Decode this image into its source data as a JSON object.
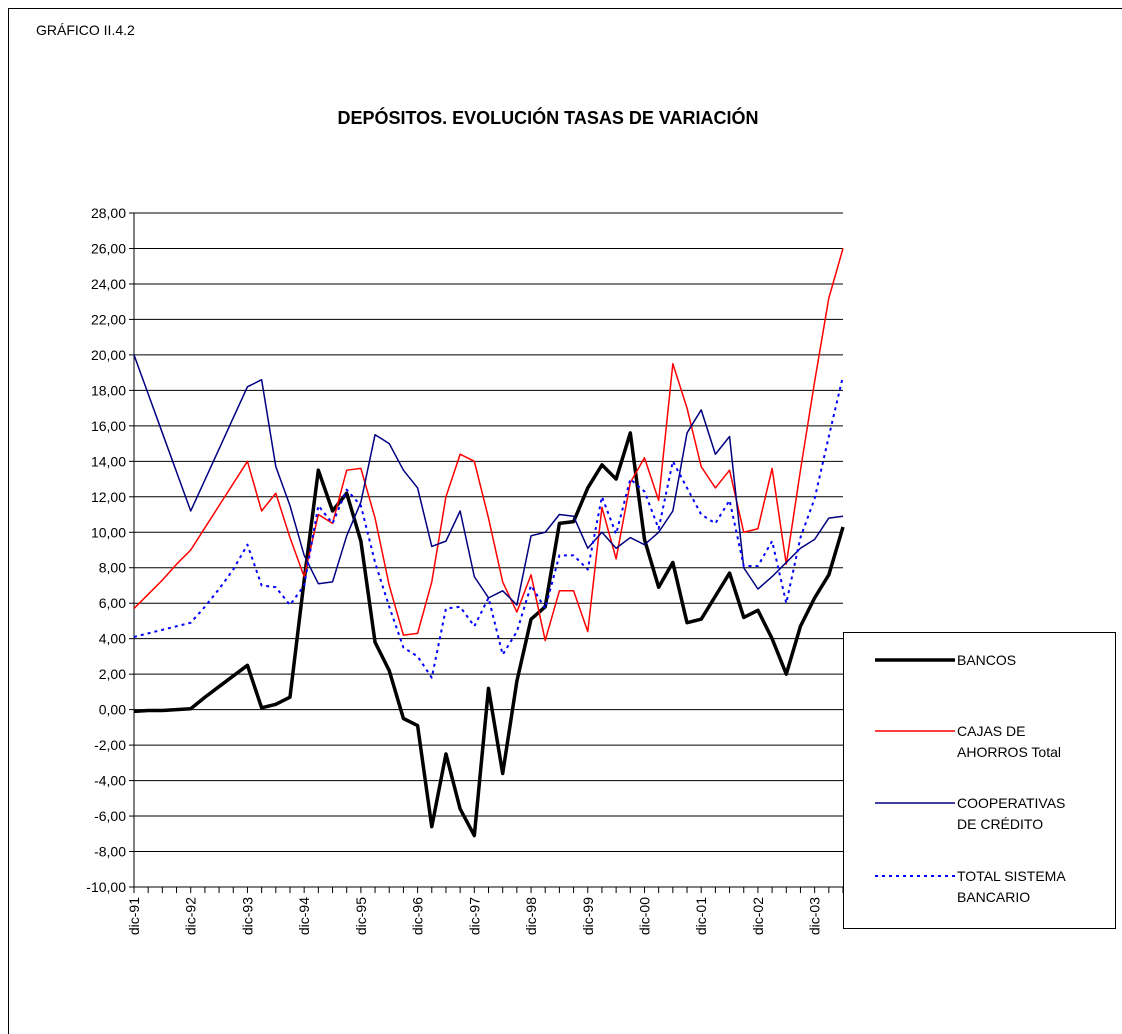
{
  "header": {
    "label": "GRÁFICO II.4.2"
  },
  "chart_data": {
    "type": "line",
    "title": "DEPÓSITOS. EVOLUCIÓN TASAS DE VARIACIÓN",
    "categories": [
      "dic-91",
      null,
      null,
      null,
      "dic-92",
      null,
      null,
      null,
      "dic-93",
      null,
      null,
      null,
      "dic-94",
      null,
      null,
      null,
      "dic-95",
      null,
      null,
      null,
      "dic-96",
      null,
      null,
      null,
      "dic-97",
      null,
      null,
      null,
      "dic-98",
      null,
      null,
      null,
      "dic-99",
      null,
      null,
      null,
      "dic-00",
      null,
      null,
      null,
      "dic-01",
      null,
      null,
      null,
      "dic-02",
      null,
      null,
      null,
      "dic-03",
      null,
      null
    ],
    "series": [
      {
        "name": "BANCOS",
        "color": "#000000",
        "line_width": 3.5,
        "line_style": "solid",
        "values": [
          -0.1,
          -0.05,
          -0.05,
          0,
          0.05,
          0.7,
          1.3,
          1.9,
          2.5,
          0.1,
          0.3,
          0.7,
          7.3,
          13.5,
          11.2,
          12.2,
          9.5,
          3.8,
          2.2,
          -0.5,
          -0.9,
          -6.6,
          -2.5,
          -5.6,
          -7.1,
          1.2,
          -3.6,
          1.6,
          5.1,
          5.8,
          10.5,
          10.6,
          12.5,
          13.8,
          13.0,
          15.6,
          9.6,
          6.9,
          8.3,
          4.9,
          5.1,
          6.4,
          7.7,
          5.2,
          5.6,
          4.0,
          2.0,
          4.7,
          6.3,
          7.6,
          10.3
        ]
      },
      {
        "name": "CAJAS DE AHORROS Total",
        "color": "#ff0000",
        "line_width": 1.5,
        "line_style": "solid",
        "values": [
          5.7,
          6.5,
          7.3,
          8.2,
          9.0,
          10.25,
          11.5,
          12.75,
          14.0,
          11.2,
          12.2,
          9.7,
          7.5,
          11.0,
          10.5,
          13.5,
          13.6,
          10.8,
          7.0,
          4.2,
          4.3,
          7.2,
          12.0,
          14.4,
          14.0,
          10.8,
          7.2,
          5.5,
          7.6,
          3.9,
          6.7,
          6.7,
          4.4,
          11.4,
          8.5,
          12.8,
          14.2,
          11.8,
          19.5,
          17.0,
          13.7,
          12.5,
          13.5,
          10.0,
          10.2,
          13.6,
          8.2,
          13.5,
          18.5,
          23.2,
          26.0
        ]
      },
      {
        "name": "COOPERATIVAS DE CRÉDITO",
        "color": "#000080",
        "line_width": 1.5,
        "line_style": "solid",
        "values": [
          20.0,
          17.8,
          15.6,
          13.4,
          11.2,
          12.95,
          14.7,
          16.45,
          18.2,
          18.6,
          13.7,
          11.5,
          8.7,
          7.1,
          7.2,
          9.8,
          11.7,
          15.5,
          15.0,
          13.5,
          12.5,
          9.2,
          9.5,
          11.2,
          7.5,
          6.3,
          6.7,
          5.9,
          9.8,
          10.0,
          11.0,
          10.9,
          9.1,
          10.0,
          9.1,
          9.7,
          9.3,
          10.0,
          11.2,
          15.6,
          16.9,
          14.4,
          15.4,
          8.0,
          6.8,
          7.5,
          8.3,
          9.1,
          9.6,
          10.8,
          10.9
        ]
      },
      {
        "name": "TOTAL  SISTEMA BANCARIO",
        "color": "#0000ff",
        "line_width": 2,
        "line_style": "dotted",
        "values": [
          4.1,
          4.3,
          4.5,
          4.7,
          4.9,
          5.8,
          6.8,
          7.9,
          9.3,
          7.0,
          6.9,
          5.9,
          7.0,
          11.5,
          10.5,
          12.4,
          11.5,
          8.3,
          5.8,
          3.5,
          3.0,
          1.8,
          5.7,
          5.8,
          4.7,
          6.3,
          3.1,
          4.4,
          7.0,
          5.7,
          8.7,
          8.7,
          7.9,
          12.0,
          9.9,
          13.0,
          12.3,
          10.2,
          14.0,
          12.5,
          11.0,
          10.5,
          11.8,
          8.1,
          8.1,
          9.5,
          6.0,
          9.7,
          11.9,
          15.4,
          18.8
        ]
      }
    ],
    "ylim": [
      -10,
      28
    ],
    "yticks": [
      {
        "value": -10,
        "label": "-10,00"
      },
      {
        "value": -8,
        "label": "-8,00"
      },
      {
        "value": -6,
        "label": "-6,00"
      },
      {
        "value": -4,
        "label": "-4,00"
      },
      {
        "value": -2,
        "label": "-2,00"
      },
      {
        "value": 0,
        "label": "0,00"
      },
      {
        "value": 2,
        "label": "2,00"
      },
      {
        "value": 4,
        "label": "4,00"
      },
      {
        "value": 6,
        "label": "6,00"
      },
      {
        "value": 8,
        "label": "8,00"
      },
      {
        "value": 10,
        "label": "10,00"
      },
      {
        "value": 12,
        "label": "12,00"
      },
      {
        "value": 14,
        "label": "14,00"
      },
      {
        "value": 16,
        "label": "16,00"
      },
      {
        "value": 18,
        "label": "18,00"
      },
      {
        "value": 20,
        "label": "20,00"
      },
      {
        "value": 22,
        "label": "22,00"
      },
      {
        "value": 24,
        "label": "24,00"
      },
      {
        "value": 26,
        "label": "26,00"
      },
      {
        "value": 28,
        "label": "28,00"
      }
    ],
    "grid": true,
    "legend": "right"
  }
}
